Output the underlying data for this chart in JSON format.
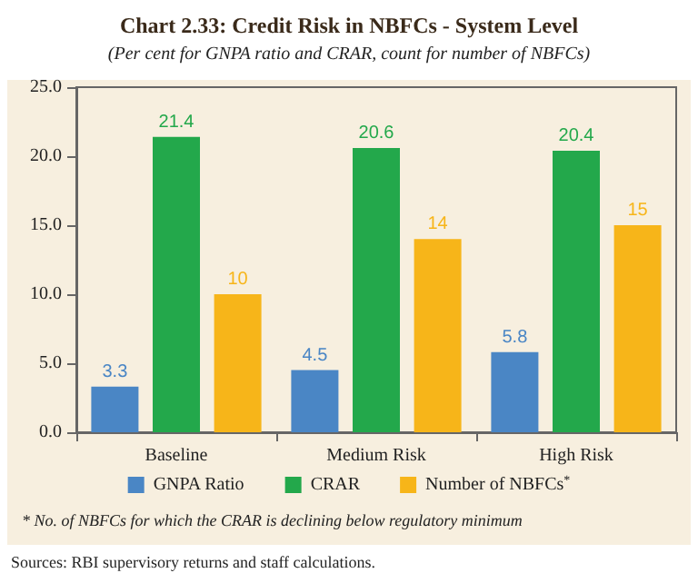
{
  "chart_data": {
    "type": "bar",
    "title": "Chart 2.33: Credit Risk in NBFCs - System Level",
    "subtitle": "(Per cent for GNPA ratio and CRAR, count for number of NBFCs)",
    "categories": [
      "Baseline",
      "Medium Risk",
      "High Risk"
    ],
    "series": [
      {
        "name": "GNPA Ratio",
        "color": "#4a86c5",
        "values": [
          3.3,
          4.5,
          5.8
        ]
      },
      {
        "name": "CRAR",
        "color": "#23a84b",
        "values": [
          21.4,
          20.6,
          20.4
        ]
      },
      {
        "name": "Number of NBFCs$^{*}$",
        "color": "#f7b519",
        "values": [
          10,
          14,
          15
        ]
      }
    ],
    "ylim": [
      0,
      25
    ],
    "yticks": [
      {
        "value": 0,
        "label": "0.0"
      },
      {
        "value": 5,
        "label": "5.0"
      },
      {
        "value": 10,
        "label": "10.0"
      },
      {
        "value": 15,
        "label": "15.0"
      },
      {
        "value": 20,
        "label": "20.0"
      },
      {
        "value": 25,
        "label": "25.0"
      }
    ],
    "grid": false,
    "legend": "bottom",
    "data_labels": true,
    "annotations": [
      "* No. of NBFCs for which the CRAR is declining below regulatory minimum",
      "Sources: RBI supervisory returns and staff calculations."
    ]
  }
}
